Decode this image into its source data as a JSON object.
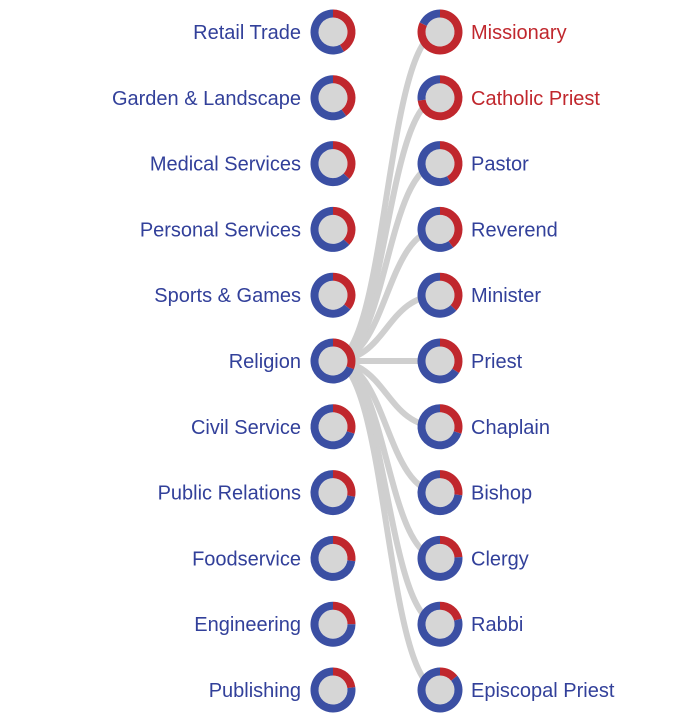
{
  "colors": {
    "blue": "#3b4fa3",
    "red": "#c0272d",
    "center": "#d6d6d6",
    "link": "#cfcfcf",
    "label_blue": "#32409a",
    "label_red": "#c0272d"
  },
  "left_items": [
    {
      "label": "Retail Trade",
      "red_share": 0.42
    },
    {
      "label": "Garden & Landscape",
      "red_share": 0.4
    },
    {
      "label": "Medical Services",
      "red_share": 0.37
    },
    {
      "label": "Personal Services",
      "red_share": 0.37
    },
    {
      "label": "Sports & Games",
      "red_share": 0.36
    },
    {
      "label": "Religion",
      "red_share": 0.31
    },
    {
      "label": "Civil Service",
      "red_share": 0.3
    },
    {
      "label": "Public Relations",
      "red_share": 0.28
    },
    {
      "label": "Foodservice",
      "red_share": 0.27
    },
    {
      "label": "Engineering",
      "red_share": 0.25
    },
    {
      "label": "Publishing",
      "red_share": 0.23
    }
  ],
  "right_items": [
    {
      "label": "Missionary",
      "red_share": 0.82,
      "label_color": "red"
    },
    {
      "label": "Catholic Priest",
      "red_share": 0.73,
      "label_color": "red"
    },
    {
      "label": "Pastor",
      "red_share": 0.42,
      "label_color": "blue"
    },
    {
      "label": "Reverend",
      "red_share": 0.4,
      "label_color": "blue"
    },
    {
      "label": "Minister",
      "red_share": 0.37,
      "label_color": "blue"
    },
    {
      "label": "Priest",
      "red_share": 0.34,
      "label_color": "blue"
    },
    {
      "label": "Chaplain",
      "red_share": 0.3,
      "label_color": "blue"
    },
    {
      "label": "Bishop",
      "red_share": 0.27,
      "label_color": "blue"
    },
    {
      "label": "Clergy",
      "red_share": 0.24,
      "label_color": "blue"
    },
    {
      "label": "Rabbi",
      "red_share": 0.21,
      "label_color": "blue"
    },
    {
      "label": "Episcopal Priest",
      "red_share": 0.14,
      "label_color": "blue"
    }
  ],
  "links": {
    "from": "Religion",
    "to": [
      "Missionary",
      "Catholic Priest",
      "Pastor",
      "Reverend",
      "Minister",
      "Priest",
      "Chaplain",
      "Bishop",
      "Clergy",
      "Rabbi",
      "Episcopal Priest"
    ]
  }
}
